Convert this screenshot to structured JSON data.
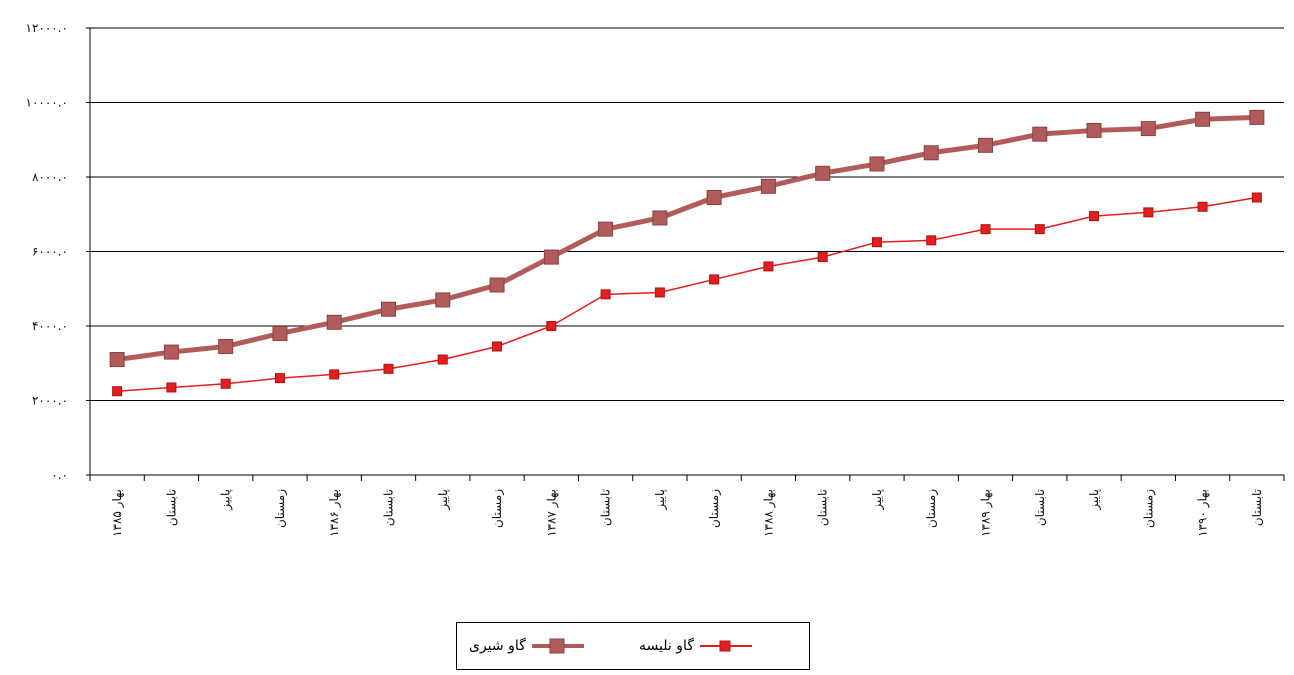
{
  "chart_data": {
    "type": "line",
    "title": "",
    "xlabel": "",
    "ylabel": "",
    "categories": [
      "بهار ۱۳۸۵",
      "تابستان",
      "پاییز",
      "زمستان",
      "بهار ۱۳۸۶",
      "تابستان",
      "پاییز",
      "زمستان",
      "بهار ۱۳۸۷",
      "تابستان",
      "پاییز",
      "زمستان",
      "بهار ۱۳۸۸",
      "تابستان",
      "پاییز",
      "زمستان",
      "بهار ۱۳۸۹",
      "تابستان",
      "پاییز",
      "زمستان",
      "بهار ۱۳۹۰",
      "تابستان"
    ],
    "ylim": [
      0,
      12000
    ],
    "yticks": [
      0,
      2000,
      4000,
      6000,
      8000,
      10000,
      12000
    ],
    "ytick_labels": [
      "۰.۰",
      "۲۰۰۰.۰",
      "۴۰۰۰.۰",
      "۶۰۰۰.۰",
      "۸۰۰۰.۰",
      "۱۰۰۰۰.۰",
      "۱۲۰۰۰.۰"
    ],
    "grid": true,
    "legend_position": "bottom",
    "series": [
      {
        "name": "گاو شیری",
        "color": "#b25b5b",
        "marker": "square",
        "values": [
          3100,
          3300,
          3450,
          3800,
          4100,
          4450,
          4700,
          5100,
          5850,
          6600,
          6900,
          7450,
          7750,
          8100,
          8350,
          8650,
          8850,
          9150,
          9250,
          9300,
          9550,
          9600
        ]
      },
      {
        "name": "گاو نلیسه",
        "color": "#e41e1e",
        "marker": "square",
        "values": [
          2250,
          2350,
          2450,
          2600,
          2700,
          2850,
          3100,
          3450,
          4000,
          4850,
          4900,
          5250,
          5600,
          5850,
          6250,
          6300,
          6600,
          6600,
          6950,
          7050,
          7200,
          7450
        ]
      }
    ]
  }
}
